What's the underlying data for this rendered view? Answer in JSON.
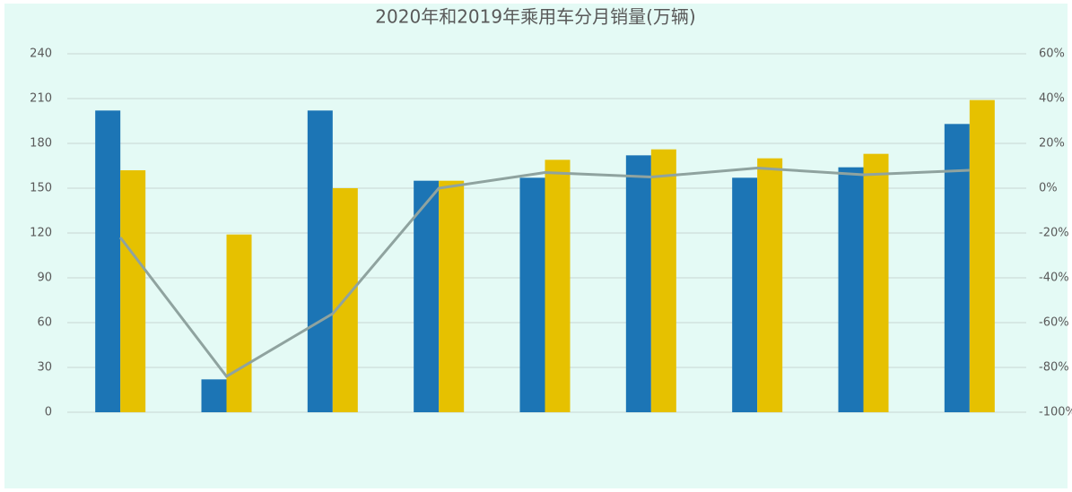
{
  "chart_data": {
    "type": "bar",
    "title": "2020年和2019年乘用车分月销量(万辆)",
    "categories": [
      null,
      null,
      null,
      null,
      null,
      null,
      null,
      null,
      null
    ],
    "series": [
      {
        "color": "#1c75b5",
        "values": [
          202,
          22,
          202,
          155,
          157,
          172,
          157,
          164,
          193
        ]
      },
      {
        "color": "#e6c100",
        "values": [
          162,
          119,
          150,
          155,
          169,
          176,
          170,
          173,
          209
        ]
      },
      {
        "type": "line",
        "axis": "y2",
        "color": "#8fa39f",
        "values": [
          -22,
          -84,
          -56,
          0,
          7,
          5,
          9,
          6,
          8
        ]
      }
    ],
    "ylim": [
      0,
      240
    ],
    "yticks": [
      0,
      30,
      60,
      90,
      120,
      150,
      180,
      210,
      240
    ],
    "y2lim": [
      -100,
      60
    ],
    "y2ticks": [
      {
        "value": -100,
        "label": "-100%"
      },
      {
        "value": -80,
        "label": "-80%"
      },
      {
        "value": -60,
        "label": "-60%"
      },
      {
        "value": -40,
        "label": "-40%"
      },
      {
        "value": -20,
        "label": "-20%"
      },
      {
        "value": 0,
        "label": "0%"
      },
      {
        "value": 20,
        "label": "20%"
      },
      {
        "value": 40,
        "label": "40%"
      },
      {
        "value": 60,
        "label": "60%"
      }
    ],
    "grid": true
  }
}
